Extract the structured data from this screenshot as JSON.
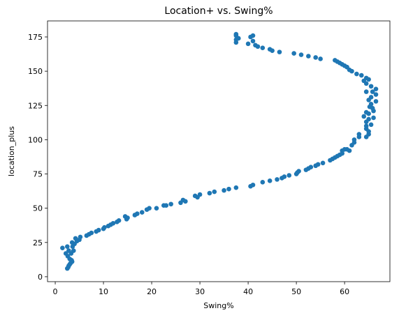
{
  "chart_data": {
    "type": "scatter",
    "title": "Location+ vs. Swing%",
    "x_label": "Swing%",
    "y_label": "location_plus",
    "color": "#1f77b4",
    "x": [
      2.5,
      2.7,
      2.8,
      3,
      3.2,
      3.5,
      3.4,
      3,
      2.6,
      2.2,
      3.3,
      2.8,
      3.8,
      1.5,
      2.5,
      3.6,
      4,
      3.5,
      4.5,
      4.2,
      5,
      5.2,
      6.5,
      7,
      7.5,
      8.5,
      9,
      10,
      10.2,
      11,
      11.5,
      12,
      12.8,
      13.2,
      14.8,
      15,
      14.5,
      16.5,
      17,
      18,
      19,
      19.5,
      21,
      22.5,
      23,
      24,
      26,
      26.5,
      27,
      29,
      29.5,
      30,
      32,
      33,
      35,
      36,
      37.5,
      40.5,
      41,
      43,
      44.5,
      46,
      47,
      47.5,
      48.5,
      50,
      50.2,
      50.5,
      52,
      52.5,
      53,
      54,
      54.5,
      55.5,
      57,
      57.5,
      58,
      58.5,
      59,
      59.5,
      59.5,
      60,
      60.5,
      61,
      61.5,
      62,
      62,
      63,
      63,
      64.5,
      65,
      65,
      64.5,
      64.5,
      65.5,
      64.5,
      65,
      66,
      64,
      65,
      64.5,
      66,
      65.8,
      65.2,
      65.5,
      66.5,
      65,
      65.5,
      66.5,
      65.8,
      64.5,
      66.5,
      65.5,
      64.5,
      64,
      65,
      64.5,
      63.5,
      62.5,
      61.5,
      61,
      60.5,
      60,
      59.5,
      59,
      58.5,
      58,
      55,
      54,
      52.5,
      51,
      49.5,
      46.5,
      45,
      44.5,
      43,
      42,
      41.5,
      40,
      37.5,
      41,
      37.5,
      38,
      40.5,
      37.5,
      37.5,
      41
    ],
    "y": [
      6,
      7,
      8,
      9,
      10,
      11,
      12,
      13,
      15,
      17,
      17,
      19,
      19,
      21,
      22,
      22,
      24,
      25,
      26,
      28,
      27,
      29,
      30,
      31,
      32,
      33,
      34,
      35,
      36,
      37,
      38,
      39,
      40,
      41,
      42,
      43,
      44,
      45,
      46,
      47,
      49,
      50,
      50,
      52,
      52,
      53,
      54,
      56,
      55,
      59,
      58,
      60,
      61,
      62,
      63,
      64,
      65,
      66,
      67,
      69,
      70,
      71,
      72,
      73,
      74,
      75,
      76,
      77,
      78,
      79,
      80,
      81,
      82,
      83,
      85,
      86,
      87,
      88,
      89,
      90,
      92,
      93,
      93,
      92,
      96,
      98,
      100,
      102,
      104,
      102,
      104,
      106,
      108,
      110,
      111,
      113,
      115,
      116,
      117,
      119,
      120,
      121,
      123,
      124,
      126,
      128,
      129,
      131,
      133,
      135,
      135,
      137,
      139,
      141,
      143,
      144,
      145,
      147,
      148,
      150,
      151,
      153,
      154,
      155,
      156,
      157,
      158,
      159,
      160,
      161,
      162,
      163,
      164,
      165,
      166,
      167,
      168,
      169,
      170,
      171,
      172,
      173,
      174,
      175,
      176,
      177,
      176
    ],
    "xlim": [
      -1.6,
      69.4
    ],
    "ylim": [
      -3.6,
      186.7
    ],
    "xticks": [
      0,
      10,
      20,
      30,
      40,
      50,
      60
    ],
    "yticks": [
      0,
      25,
      50,
      75,
      100,
      125,
      150,
      175
    ]
  }
}
